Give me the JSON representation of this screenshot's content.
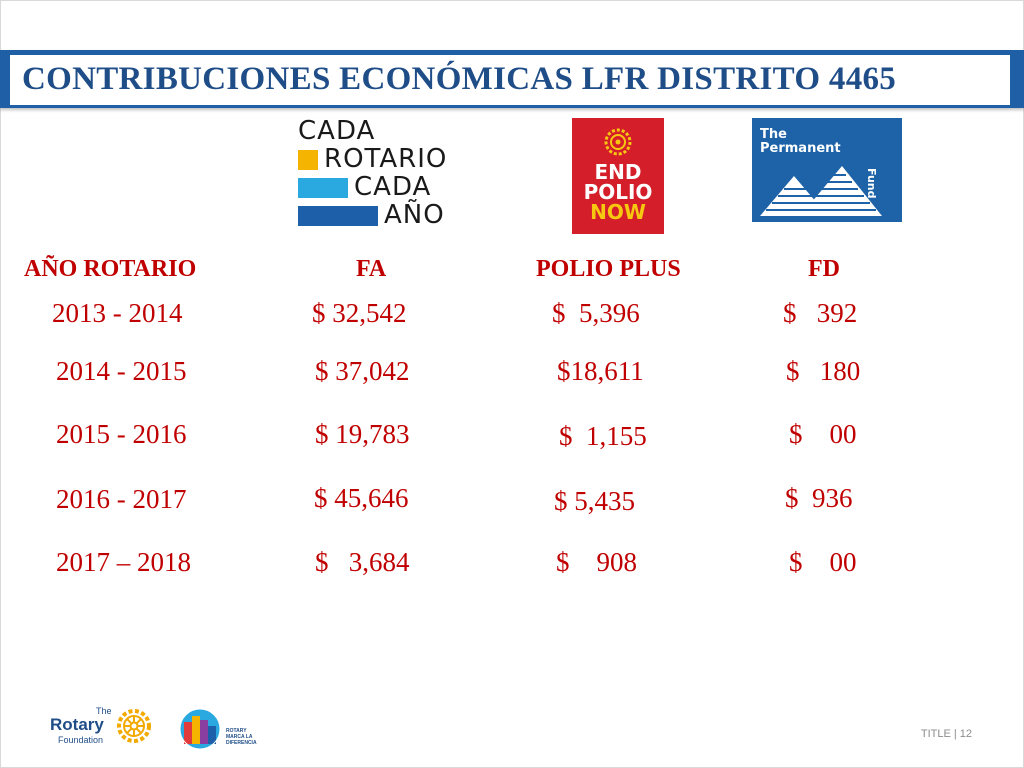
{
  "title": "CONTRIBUCIONES ECONÓMICAS LFR DISTRITO 4465",
  "logos": {
    "cada_rotario": [
      "CADA",
      "ROTARIO",
      "CADA",
      "AÑO"
    ],
    "end_polio": [
      "END",
      "POLIO",
      "NOW"
    ],
    "permanent_fund": {
      "the": "The",
      "permanent": "Permanent",
      "fund": "Fund"
    }
  },
  "table": {
    "headers": [
      "AÑO ROTARIO",
      "FA",
      "POLIO PLUS",
      "FD"
    ],
    "rows": [
      [
        "2013 - 2014",
        "$ 32,542",
        "$  5,396",
        "$   392"
      ],
      [
        "2014 - 2015",
        "$ 37,042",
        "$18,611",
        "$   180"
      ],
      [
        "2015 - 2016",
        "$ 19,783",
        "$  1,155",
        "$    00"
      ],
      [
        "2016 - 2017",
        "$ 45,646",
        "$ 5,435",
        "$  936"
      ],
      [
        "2017 – 2018",
        "$   3,684",
        "$    908",
        "$    00"
      ]
    ]
  },
  "footer": {
    "rotary_the": "The",
    "rotary_name": "Rotary",
    "rotary_foundation": "Foundation",
    "marca": [
      "ROTARY",
      "MARCA LA",
      "DIFERENCIA"
    ],
    "slide_label": "TITLE  |  12"
  },
  "colors": {
    "accent": "#c00000",
    "banner": "#1f5fa6",
    "title": "#1f4d88",
    "polio_red": "#d41f2a",
    "fund_blue": "#1e63a8"
  }
}
